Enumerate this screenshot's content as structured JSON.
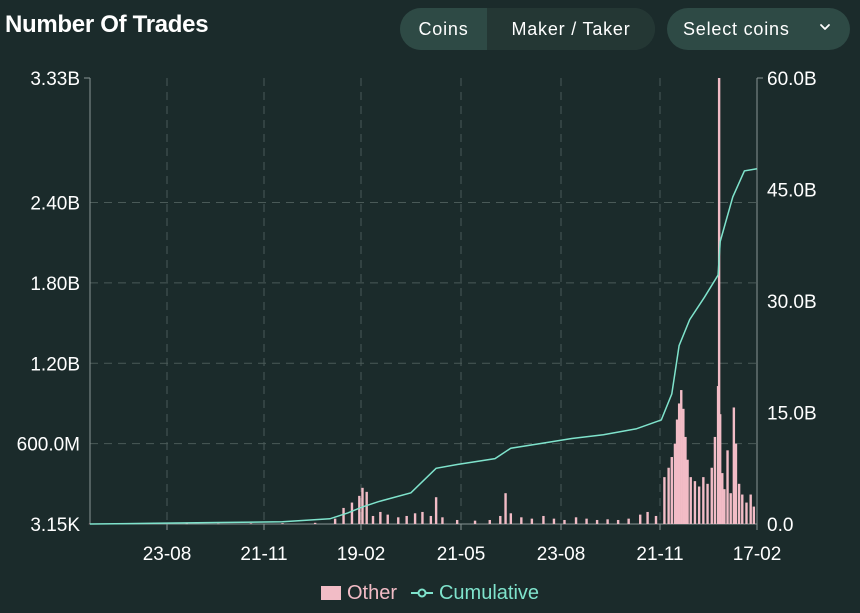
{
  "header": {
    "title": "Number Of Trades",
    "buttons": {
      "coins": "Coins",
      "maker_taker": "Maker / Taker"
    },
    "select": {
      "label": "Select coins",
      "icon": "chevron-down-icon"
    }
  },
  "colors": {
    "background": "#1b2b2b",
    "bar": "#f2bcc6",
    "cumulative_line": "#7fe3cc",
    "grid": "#4a5a58",
    "axis": "#8a9694"
  },
  "legend": {
    "other": "Other",
    "cumulative": "Cumulative"
  },
  "chart_data": {
    "type": "bar",
    "title": "Number Of Trades",
    "grid": true,
    "legend_position": "bottom-center",
    "x_axis": {
      "ticks": [
        "23-08",
        "21-11",
        "19-02",
        "21-05",
        "23-08",
        "21-11",
        "17-02"
      ],
      "range": [
        "2023-06-01",
        "2025-02-24"
      ]
    },
    "y_left": {
      "ticks": [
        "3.15K",
        "600.0M",
        "1.20B",
        "1.80B",
        "2.40B",
        "3.33B"
      ],
      "range": [
        3150,
        3330000000
      ]
    },
    "y_right": {
      "ticks": [
        "0.0",
        "15.0B",
        "30.0B",
        "45.0B",
        "60.0B"
      ],
      "range": [
        0,
        60000000000
      ]
    },
    "series": [
      {
        "name": "Other",
        "kind": "bar",
        "axis": "left",
        "points": [
          [
            "2023-06-01",
            2000000
          ],
          [
            "2023-07-01",
            3000000
          ],
          [
            "2023-08-01",
            4000000
          ],
          [
            "2023-09-01",
            3000000
          ],
          [
            "2023-10-01",
            3000000
          ],
          [
            "2023-11-01",
            5000000
          ],
          [
            "2023-12-01",
            6000000
          ],
          [
            "2024-01-01",
            9000000
          ],
          [
            "2024-01-20",
            40000000
          ],
          [
            "2024-01-28",
            120000000
          ],
          [
            "2024-02-05",
            160000000
          ],
          [
            "2024-02-12",
            210000000
          ],
          [
            "2024-02-15",
            270000000
          ],
          [
            "2024-02-19",
            240000000
          ],
          [
            "2024-02-25",
            60000000
          ],
          [
            "2024-03-03",
            90000000
          ],
          [
            "2024-03-10",
            70000000
          ],
          [
            "2024-03-20",
            50000000
          ],
          [
            "2024-03-28",
            60000000
          ],
          [
            "2024-04-05",
            80000000
          ],
          [
            "2024-04-12",
            90000000
          ],
          [
            "2024-04-20",
            60000000
          ],
          [
            "2024-04-25",
            200000000
          ],
          [
            "2024-05-01",
            50000000
          ],
          [
            "2024-05-15",
            30000000
          ],
          [
            "2024-06-01",
            25000000
          ],
          [
            "2024-06-15",
            30000000
          ],
          [
            "2024-06-25",
            60000000
          ],
          [
            "2024-06-30",
            230000000
          ],
          [
            "2024-07-05",
            80000000
          ],
          [
            "2024-07-15",
            50000000
          ],
          [
            "2024-07-25",
            40000000
          ],
          [
            "2024-08-05",
            60000000
          ],
          [
            "2024-08-15",
            40000000
          ],
          [
            "2024-08-25",
            30000000
          ],
          [
            "2024-09-05",
            50000000
          ],
          [
            "2024-09-15",
            40000000
          ],
          [
            "2024-09-25",
            30000000
          ],
          [
            "2024-10-05",
            35000000
          ],
          [
            "2024-10-15",
            30000000
          ],
          [
            "2024-10-25",
            40000000
          ],
          [
            "2024-11-05",
            70000000
          ],
          [
            "2024-11-12",
            90000000
          ],
          [
            "2024-11-20",
            60000000
          ],
          [
            "2024-11-28",
            350000000
          ],
          [
            "2024-12-02",
            420000000
          ],
          [
            "2024-12-05",
            500000000
          ],
          [
            "2024-12-08",
            600000000
          ],
          [
            "2024-12-10",
            780000000
          ],
          [
            "2024-12-12",
            900000000
          ],
          [
            "2024-12-14",
            1000000000
          ],
          [
            "2024-12-16",
            860000000
          ],
          [
            "2024-12-18",
            650000000
          ],
          [
            "2024-12-20",
            480000000
          ],
          [
            "2024-12-23",
            350000000
          ],
          [
            "2024-12-27",
            320000000
          ],
          [
            "2024-12-31",
            280000000
          ],
          [
            "2025-01-04",
            350000000
          ],
          [
            "2025-01-08",
            300000000
          ],
          [
            "2025-01-12",
            420000000
          ],
          [
            "2025-01-15",
            650000000
          ],
          [
            "2025-01-18",
            1030000000
          ],
          [
            "2025-01-19",
            3330000000
          ],
          [
            "2025-01-20",
            820000000
          ],
          [
            "2025-01-22",
            380000000
          ],
          [
            "2025-01-24",
            260000000
          ],
          [
            "2025-01-27",
            550000000
          ],
          [
            "2025-01-30",
            230000000
          ],
          [
            "2025-02-02",
            870000000
          ],
          [
            "2025-02-04",
            600000000
          ],
          [
            "2025-02-07",
            300000000
          ],
          [
            "2025-02-10",
            220000000
          ],
          [
            "2025-02-14",
            160000000
          ],
          [
            "2025-02-18",
            220000000
          ],
          [
            "2025-02-21",
            130000000
          ]
        ]
      },
      {
        "name": "Cumulative",
        "kind": "line",
        "axis": "right",
        "points": [
          [
            "2023-06-01",
            0
          ],
          [
            "2023-08-01",
            100000000
          ],
          [
            "2023-10-01",
            200000000
          ],
          [
            "2023-12-01",
            300000000
          ],
          [
            "2024-01-15",
            700000000
          ],
          [
            "2024-02-01",
            1500000000
          ],
          [
            "2024-02-15",
            2300000000
          ],
          [
            "2024-03-01",
            3000000000
          ],
          [
            "2024-04-01",
            4200000000
          ],
          [
            "2024-04-25",
            7500000000
          ],
          [
            "2024-05-15",
            8000000000
          ],
          [
            "2024-06-20",
            8800000000
          ],
          [
            "2024-07-05",
            10200000000
          ],
          [
            "2024-08-01",
            10800000000
          ],
          [
            "2024-09-01",
            11500000000
          ],
          [
            "2024-10-01",
            12000000000
          ],
          [
            "2024-11-01",
            12800000000
          ],
          [
            "2024-11-25",
            14000000000
          ],
          [
            "2024-12-05",
            17500000000
          ],
          [
            "2024-12-12",
            24000000000
          ],
          [
            "2024-12-22",
            27500000000
          ],
          [
            "2025-01-05",
            30500000000
          ],
          [
            "2025-01-18",
            33500000000
          ],
          [
            "2025-01-20",
            38000000000
          ],
          [
            "2025-02-01",
            44000000000
          ],
          [
            "2025-02-12",
            47500000000
          ],
          [
            "2025-02-24",
            47800000000
          ]
        ]
      }
    ]
  }
}
